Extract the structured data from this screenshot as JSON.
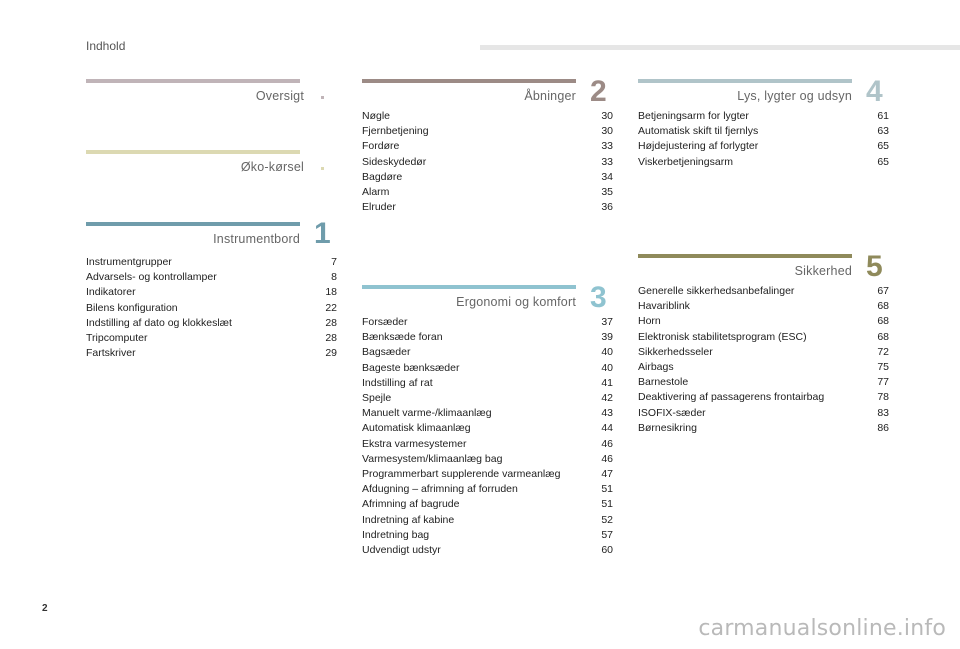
{
  "header": {
    "title": "Indhold"
  },
  "page_number": "2",
  "watermark": "carmanualsonline.info",
  "sections": {
    "oversigt": {
      "title": "Oversigt",
      "color": "#c0b4b8",
      "dot_color": "#c0b4b8"
    },
    "oko": {
      "title": "Øko-kørsel",
      "color": "#dcd9b2",
      "dot_color": "#dcd9b2"
    },
    "s1": {
      "number": "1",
      "title": "Instrumentbord",
      "color": "#6f9cab",
      "entries": [
        {
          "label": "Instrumentgrupper",
          "page": "7"
        },
        {
          "label": "Advarsels- og kontrollamper",
          "page": "8"
        },
        {
          "label": "Indikatorer",
          "page": "18"
        },
        {
          "label": "Bilens konfiguration",
          "page": "22"
        },
        {
          "label": "Indstilling af dato og klokkeslæt",
          "page": "28"
        },
        {
          "label": "Tripcomputer",
          "page": "28"
        },
        {
          "label": "Fartskriver",
          "page": "29"
        }
      ]
    },
    "s2": {
      "number": "2",
      "title": "Åbninger",
      "color": "#9c8b86",
      "entries": [
        {
          "label": "Nøgle",
          "page": "30"
        },
        {
          "label": "Fjernbetjening",
          "page": "30"
        },
        {
          "label": "Fordøre",
          "page": "33"
        },
        {
          "label": "Sideskydedør",
          "page": "33"
        },
        {
          "label": "Bagdøre",
          "page": "34"
        },
        {
          "label": "Alarm",
          "page": "35"
        },
        {
          "label": "Elruder",
          "page": "36"
        }
      ]
    },
    "s3": {
      "number": "3",
      "title": "Ergonomi og komfort",
      "color": "#8fc3d0",
      "entries": [
        {
          "label": "Forsæder",
          "page": "37"
        },
        {
          "label": "Bænksæde foran",
          "page": "39"
        },
        {
          "label": "Bagsæder",
          "page": "40"
        },
        {
          "label": "Bageste bænksæder",
          "page": "40"
        },
        {
          "label": "Indstilling af rat",
          "page": "41"
        },
        {
          "label": "Spejle",
          "page": "42"
        },
        {
          "label": "Manuelt varme-/klimaanlæg",
          "page": "43"
        },
        {
          "label": "Automatisk klimaanlæg",
          "page": "44"
        },
        {
          "label": "Ekstra varmesystemer",
          "page": "46"
        },
        {
          "label": "Varmesystem/klimaanlæg bag",
          "page": "46"
        },
        {
          "label": "Programmerbart supplerende varmeanlæg",
          "page": "47"
        },
        {
          "label": "Afdugning – afrimning af forruden",
          "page": "51"
        },
        {
          "label": "Afrimning af bagrude",
          "page": "51"
        },
        {
          "label": "Indretning af kabine",
          "page": "52"
        },
        {
          "label": "Indretning bag",
          "page": "57"
        },
        {
          "label": "Udvendigt udstyr",
          "page": "60"
        }
      ]
    },
    "s4": {
      "number": "4",
      "title": "Lys, lygter og udsyn",
      "color": "#b0c4c9",
      "entries": [
        {
          "label": "Betjeningsarm for lygter",
          "page": "61"
        },
        {
          "label": "Automatisk skift til fjernlys",
          "page": "63"
        },
        {
          "label": "Højdejustering af forlygter",
          "page": "65"
        },
        {
          "label": "Viskerbetjeningsarm",
          "page": "65"
        }
      ]
    },
    "s5": {
      "number": "5",
      "title": "Sikkerhed",
      "color": "#8f8a5b",
      "entries": [
        {
          "label": "Generelle sikkerhedsanbefalinger",
          "page": "67"
        },
        {
          "label": "Havariblink",
          "page": "68"
        },
        {
          "label": "Horn",
          "page": "68"
        },
        {
          "label": "Elektronisk stabilitetsprogram (ESC)",
          "page": "68"
        },
        {
          "label": "Sikkerhedsseler",
          "page": "72"
        },
        {
          "label": "Airbags",
          "page": "75"
        },
        {
          "label": "Barnestole",
          "page": "77"
        },
        {
          "label": "Deaktivering af passagerens frontairbag",
          "page": "78"
        },
        {
          "label": "ISOFIX-sæder",
          "page": "83"
        },
        {
          "label": "Børnesikring",
          "page": "86"
        }
      ]
    }
  }
}
